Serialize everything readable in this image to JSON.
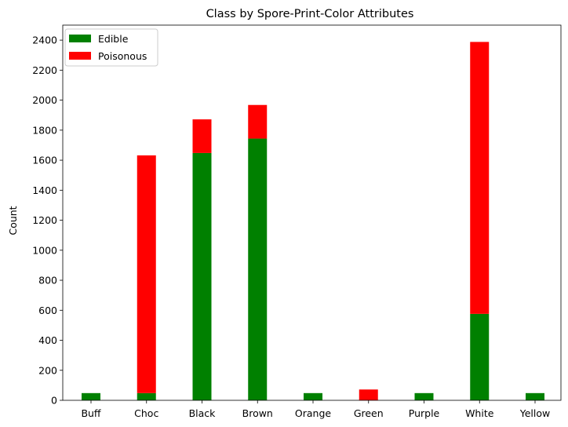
{
  "chart_data": {
    "type": "bar",
    "stacked": true,
    "title": "Class by Spore-Print-Color Attributes",
    "xlabel": "",
    "ylabel": "Count",
    "ylim": [
      0,
      2500
    ],
    "yticks": [
      0,
      200,
      400,
      600,
      800,
      1000,
      1200,
      1400,
      1600,
      1800,
      2000,
      2200,
      2400
    ],
    "categories": [
      "Buff",
      "Choc",
      "Black",
      "Brown",
      "Orange",
      "Green",
      "Purple",
      "White",
      "Yellow"
    ],
    "series": [
      {
        "name": "Edible",
        "color": "#008000",
        "values": [
          48,
          48,
          1648,
          1744,
          48,
          0,
          48,
          576,
          48
        ]
      },
      {
        "name": "Poisonous",
        "color": "#ff0000",
        "values": [
          0,
          1584,
          224,
          224,
          0,
          72,
          0,
          1812,
          0
        ]
      }
    ],
    "legend_position": "top-left",
    "grid": false
  }
}
